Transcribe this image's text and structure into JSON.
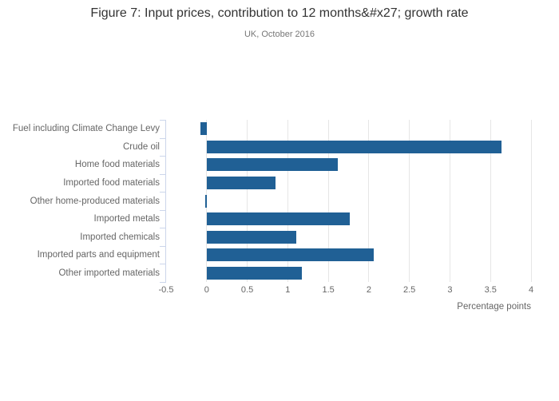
{
  "chart_data": {
    "type": "bar",
    "orientation": "horizontal",
    "title": "Figure 7: Input prices, contribution to 12 months&#x27; growth rate",
    "subtitle": "UK, October 2016",
    "xlabel": "Percentage points",
    "categories": [
      "Fuel including Climate Change Levy",
      "Crude oil",
      "Home food materials",
      "Imported food materials",
      "Other home-produced materials",
      "Imported metals",
      "Imported chemicals",
      "Imported parts and equipment",
      "Other imported materials"
    ],
    "values": [
      -0.08,
      3.64,
      1.62,
      0.85,
      -0.02,
      1.76,
      1.11,
      2.06,
      1.17
    ],
    "xlim": [
      -0.5,
      4
    ],
    "ticks": [
      -0.5,
      0,
      0.5,
      1,
      1.5,
      2,
      2.5,
      3,
      3.5,
      4
    ],
    "tick_labels": [
      "-0.5",
      "0",
      "0.5",
      "1",
      "1.5",
      "2",
      "2.5",
      "3",
      "3.5",
      "4"
    ],
    "grid": true,
    "legend": "none",
    "colors": {
      "bar": "#206095",
      "grid": "#e6e6e6",
      "axis": "#ccd6eb",
      "title_text": "#333333",
      "subtitle_text": "#777777",
      "label_text": "#666666"
    }
  }
}
